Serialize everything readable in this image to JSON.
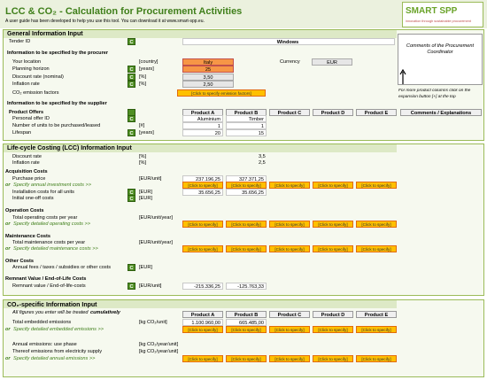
{
  "header": {
    "title": "LCC & CO₂ - Calculation for Procurement Activities",
    "subtitle": "A user guide has been developed to help you use this tool. You can download it at www.smart-spp.eu.",
    "logo": "SMART SPP",
    "logo_tagline": "innovation through sustainable procurement"
  },
  "general": {
    "title": "General Information Input",
    "tender": {
      "label": "Tender ID",
      "flag": "C",
      "value": "Windows"
    },
    "procurer_heading": "Information to be specified by the procurer",
    "location": {
      "label": "Your location",
      "unit": "[country]",
      "value": "Italy"
    },
    "currency": {
      "label": "Currency",
      "value": "EUR"
    },
    "planning": {
      "label": "Planning horizon",
      "flag": "C",
      "unit": "[years]",
      "value": "25"
    },
    "discount": {
      "label": "Discount rate (nominal)",
      "flag": "C",
      "unit": "[%]",
      "value": "3,50"
    },
    "inflation": {
      "label": "Inflation rate",
      "flag": "C",
      "unit": "[%]",
      "value": "2,50"
    },
    "emission_factors": {
      "label": "CO₂ emission factors",
      "button": "[Click to specify emission factors]"
    },
    "comments_box": "Comments of the Procurement Coordinator",
    "expansion_note": "For more product columns click on the expansion button [+] at the top",
    "supplier_heading": "Information to be specified by the supplier",
    "product_header": {
      "label": "Product Offers",
      "products": [
        "Product A",
        "Product B",
        "Product C",
        "Product D",
        "Product E"
      ],
      "comments": "Comments / Explanations"
    },
    "rows": [
      {
        "label": "Personal offer ID",
        "flag": "C",
        "values": [
          "Aluminium",
          "Timber"
        ]
      },
      {
        "label": "Number of units to be purchased/leased",
        "unit": "[#]",
        "values": [
          "1",
          "1"
        ]
      },
      {
        "label": "Lifespan",
        "flag": "C",
        "unit": "[years]",
        "values": [
          "20",
          "15"
        ]
      }
    ]
  },
  "lcc": {
    "title": "Life-cycle Costing (LCC) Information Input",
    "discount": {
      "label": "Discount rate",
      "unit": "[%]",
      "value": "3,5"
    },
    "inflation": {
      "label": "Inflation rate",
      "unit": "[%]",
      "value": "2,5"
    },
    "groups": [
      {
        "heading": "Acquisition Costs",
        "rows": [
          {
            "label": "Purchase price",
            "unit": "[EUR/unit]",
            "values": [
              "237.196,25",
              "327.371,25"
            ]
          },
          {
            "prefix": "or",
            "link": "Specify annual investment costs >>",
            "buttons": [
              "[Click to specify]",
              "[Click to specify]",
              "[Click to specify]",
              "[Click to specify]",
              "[Click to specify]"
            ]
          },
          {
            "label": "Installation costs for all units",
            "flag": "C",
            "unit": "[EUR]",
            "values": [
              "35.656,25",
              "35.656,25"
            ]
          },
          {
            "label": "Initial one-off costs",
            "flag": "C",
            "unit": "[EUR]"
          }
        ]
      },
      {
        "heading": "Operation Costs",
        "rows": [
          {
            "label": "Total operating costs per year",
            "unit": "[EUR/unit/year]"
          },
          {
            "prefix": "or",
            "link": "Specify detailed operating costs >>",
            "buttons": [
              "[Click to specify]",
              "[Click to specify]",
              "[Click to specify]",
              "[Click to specify]",
              "[Click to specify]"
            ]
          }
        ]
      },
      {
        "heading": "Maintenance Costs",
        "rows": [
          {
            "label": "Total maintenance costs per year",
            "unit": "[EUR/unit/year]"
          },
          {
            "prefix": "or",
            "link": "Specify detailed maintenance costs >>",
            "buttons": [
              "[Click to specify]",
              "[Click to specify]",
              "[Click to specify]",
              "[Click to specify]",
              "[Click to specify]"
            ]
          }
        ]
      },
      {
        "heading": "Other Costs",
        "rows": [
          {
            "label": "Annual fees / taxes / subsidies or other costs",
            "flag": "C",
            "unit": "[EUR]"
          }
        ]
      },
      {
        "heading": "Remnant Value / End-of-Life Costs",
        "rows": [
          {
            "label": "Remnant value / End-of-life-costs",
            "flag": "C",
            "unit": "[EUR/unit]",
            "values": [
              "-215.336,25",
              "-125.763,33"
            ]
          }
        ]
      }
    ]
  },
  "co2": {
    "title": "CO₂-specific Information Input",
    "note": {
      "text": "All figures you enter will be treated",
      "emphasis": "cumulatively"
    },
    "products": [
      "Product A",
      "Product B",
      "Product C",
      "Product D",
      "Product E"
    ],
    "rows": [
      {
        "label": "Total embedded emissions",
        "unit": "[kg CO₂/unit]",
        "values": [
          "1.100.960,00",
          "665.485,00"
        ]
      },
      {
        "prefix": "or",
        "link": "Specify detailed embedded emissions >>",
        "buttons": [
          "[Click to specify]",
          "[Click to specify]",
          "[Click to specify]",
          "[Click to specify]",
          "[Click to specify]"
        ]
      },
      {
        "label": "Annual emissions: use phase",
        "unit": "[kg CO₂/year/unit]"
      },
      {
        "label": "Thereof emissions from electricity supply",
        "unit": "[kg CO₂/year/unit]"
      },
      {
        "prefix": "or",
        "link": "Specify detailed annual emissions >>",
        "buttons": [
          "[Click to specify]",
          "[Click to specify]",
          "[Click to specify]",
          "[Click to specify]",
          "[Click to specify]"
        ]
      }
    ]
  }
}
